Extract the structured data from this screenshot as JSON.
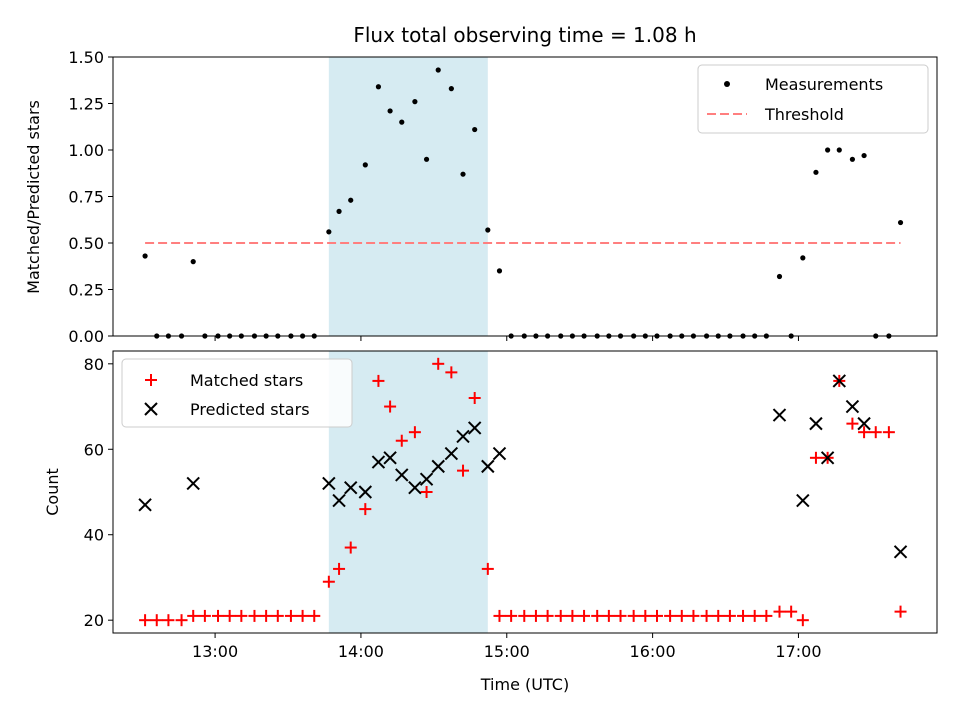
{
  "chart_data": [
    {
      "type": "scatter",
      "title": "Flux total observing time = 1.08 h",
      "xlabel": "",
      "ylabel": "Matched/Predicted stars",
      "ylim": [
        0,
        1.5
      ],
      "yticks": [
        "0.00",
        "0.25",
        "0.50",
        "0.75",
        "1.00",
        "1.25",
        "1.50"
      ],
      "grid": false,
      "legend_position": "top-right",
      "highlight_span": {
        "x0": 13.78,
        "x1": 14.87,
        "color": "#add8e6"
      },
      "threshold": {
        "name": "Threshold",
        "value": 0.5,
        "x0": 12.52,
        "x1": 17.7,
        "color": "#ff7f7f"
      },
      "series": [
        {
          "name": "Measurements",
          "color": "#000000",
          "marker": "dot",
          "points": [
            [
              12.52,
              0.43
            ],
            [
              12.6,
              0
            ],
            [
              12.68,
              0
            ],
            [
              12.77,
              0
            ],
            [
              12.85,
              0.4
            ],
            [
              12.93,
              0
            ],
            [
              13.02,
              0
            ],
            [
              13.1,
              0
            ],
            [
              13.18,
              0
            ],
            [
              13.27,
              0
            ],
            [
              13.35,
              0
            ],
            [
              13.43,
              0
            ],
            [
              13.52,
              0
            ],
            [
              13.6,
              0
            ],
            [
              13.68,
              0
            ],
            [
              13.78,
              0.56
            ],
            [
              13.85,
              0.67
            ],
            [
              13.93,
              0.73
            ],
            [
              14.03,
              0.92
            ],
            [
              14.12,
              1.34
            ],
            [
              14.2,
              1.21
            ],
            [
              14.28,
              1.15
            ],
            [
              14.37,
              1.26
            ],
            [
              14.45,
              0.95
            ],
            [
              14.53,
              1.43
            ],
            [
              14.62,
              1.33
            ],
            [
              14.7,
              0.87
            ],
            [
              14.78,
              1.11
            ],
            [
              14.87,
              0.57
            ],
            [
              14.95,
              0.35
            ],
            [
              15.03,
              0
            ],
            [
              15.12,
              0
            ],
            [
              15.2,
              0
            ],
            [
              15.28,
              0
            ],
            [
              15.37,
              0
            ],
            [
              15.45,
              0
            ],
            [
              15.53,
              0
            ],
            [
              15.62,
              0
            ],
            [
              15.7,
              0
            ],
            [
              15.78,
              0
            ],
            [
              15.87,
              0
            ],
            [
              15.95,
              0
            ],
            [
              16.03,
              0
            ],
            [
              16.12,
              0
            ],
            [
              16.2,
              0
            ],
            [
              16.28,
              0
            ],
            [
              16.37,
              0
            ],
            [
              16.45,
              0
            ],
            [
              16.53,
              0
            ],
            [
              16.62,
              0
            ],
            [
              16.7,
              0
            ],
            [
              16.78,
              0
            ],
            [
              16.87,
              0.32
            ],
            [
              16.95,
              0
            ],
            [
              17.03,
              0.42
            ],
            [
              17.12,
              0.88
            ],
            [
              17.2,
              1.0
            ],
            [
              17.28,
              1.0
            ],
            [
              17.37,
              0.95
            ],
            [
              17.45,
              0.97
            ],
            [
              17.53,
              0
            ],
            [
              17.62,
              0
            ],
            [
              17.7,
              0.61
            ]
          ]
        }
      ]
    },
    {
      "type": "scatter",
      "title": "",
      "xlabel": "Time (UTC)",
      "ylabel": "Count",
      "ylim": [
        17,
        83
      ],
      "yticks": [
        "20",
        "40",
        "60",
        "80"
      ],
      "xlim": [
        12.3,
        17.95
      ],
      "xticks": [
        "13:00",
        "14:00",
        "15:00",
        "16:00",
        "17:00"
      ],
      "grid": false,
      "legend_position": "top-left",
      "highlight_span": {
        "x0": 13.78,
        "x1": 14.87,
        "color": "#add8e6"
      },
      "series": [
        {
          "name": "Matched stars",
          "color": "#ff0000",
          "marker": "plus",
          "points": [
            [
              12.52,
              20
            ],
            [
              12.6,
              20
            ],
            [
              12.68,
              20
            ],
            [
              12.77,
              20
            ],
            [
              12.85,
              21
            ],
            [
              12.93,
              21
            ],
            [
              13.02,
              21
            ],
            [
              13.1,
              21
            ],
            [
              13.18,
              21
            ],
            [
              13.27,
              21
            ],
            [
              13.35,
              21
            ],
            [
              13.43,
              21
            ],
            [
              13.52,
              21
            ],
            [
              13.6,
              21
            ],
            [
              13.68,
              21
            ],
            [
              13.78,
              29
            ],
            [
              13.85,
              32
            ],
            [
              13.93,
              37
            ],
            [
              14.03,
              46
            ],
            [
              14.12,
              76
            ],
            [
              14.2,
              70
            ],
            [
              14.28,
              62
            ],
            [
              14.37,
              64
            ],
            [
              14.45,
              50
            ],
            [
              14.53,
              80
            ],
            [
              14.62,
              78
            ],
            [
              14.7,
              55
            ],
            [
              14.78,
              72
            ],
            [
              14.87,
              32
            ],
            [
              14.95,
              21
            ],
            [
              15.03,
              21
            ],
            [
              15.12,
              21
            ],
            [
              15.2,
              21
            ],
            [
              15.28,
              21
            ],
            [
              15.37,
              21
            ],
            [
              15.45,
              21
            ],
            [
              15.53,
              21
            ],
            [
              15.62,
              21
            ],
            [
              15.7,
              21
            ],
            [
              15.78,
              21
            ],
            [
              15.87,
              21
            ],
            [
              15.95,
              21
            ],
            [
              16.03,
              21
            ],
            [
              16.12,
              21
            ],
            [
              16.2,
              21
            ],
            [
              16.28,
              21
            ],
            [
              16.37,
              21
            ],
            [
              16.45,
              21
            ],
            [
              16.53,
              21
            ],
            [
              16.62,
              21
            ],
            [
              16.7,
              21
            ],
            [
              16.78,
              21
            ],
            [
              16.87,
              22
            ],
            [
              16.95,
              22
            ],
            [
              17.03,
              20
            ],
            [
              17.12,
              58
            ],
            [
              17.2,
              58
            ],
            [
              17.28,
              76
            ],
            [
              17.37,
              66
            ],
            [
              17.45,
              64
            ],
            [
              17.53,
              64
            ],
            [
              17.62,
              64
            ],
            [
              17.7,
              22
            ]
          ]
        },
        {
          "name": "Predicted stars",
          "color": "#000000",
          "marker": "x",
          "points": [
            [
              12.52,
              47
            ],
            [
              12.85,
              52
            ],
            [
              13.78,
              52
            ],
            [
              13.85,
              48
            ],
            [
              13.93,
              51
            ],
            [
              14.03,
              50
            ],
            [
              14.12,
              57
            ],
            [
              14.2,
              58
            ],
            [
              14.28,
              54
            ],
            [
              14.37,
              51
            ],
            [
              14.45,
              53
            ],
            [
              14.53,
              56
            ],
            [
              14.62,
              59
            ],
            [
              14.7,
              63
            ],
            [
              14.78,
              65
            ],
            [
              14.87,
              56
            ],
            [
              14.95,
              59
            ],
            [
              16.87,
              68
            ],
            [
              17.03,
              48
            ],
            [
              17.12,
              66
            ],
            [
              17.2,
              58
            ],
            [
              17.28,
              76
            ],
            [
              17.37,
              70
            ],
            [
              17.45,
              66
            ],
            [
              17.7,
              36
            ]
          ]
        }
      ]
    }
  ]
}
